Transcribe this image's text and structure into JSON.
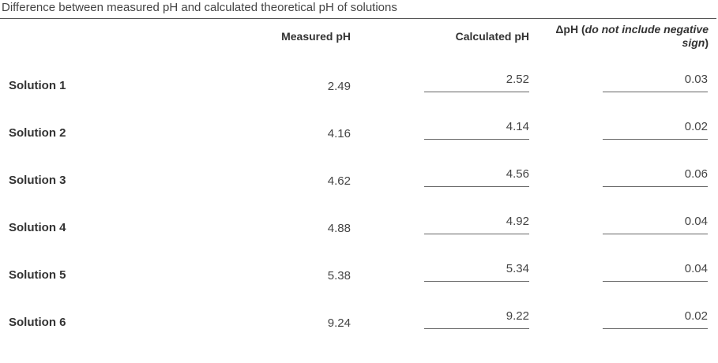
{
  "caption": "Difference between measured pH and calculated theoretical pH of solutions",
  "headers": {
    "measured": "Measured pH",
    "calculated": "Calculated pH",
    "delta_prefix": "ΔpH (",
    "delta_italic": "do not include negative sign",
    "delta_suffix": ")"
  },
  "rows": [
    {
      "label": "Solution 1",
      "measured": "2.49",
      "calculated": "2.52",
      "delta": "0.03"
    },
    {
      "label": "Solution 2",
      "measured": "4.16",
      "calculated": "4.14",
      "delta": "0.02"
    },
    {
      "label": "Solution 3",
      "measured": "4.62",
      "calculated": "4.56",
      "delta": "0.06"
    },
    {
      "label": "Solution 4",
      "measured": "4.88",
      "calculated": "4.92",
      "delta": "0.04"
    },
    {
      "label": "Solution 5",
      "measured": "5.38",
      "calculated": "5.34",
      "delta": "0.04"
    },
    {
      "label": "Solution 6",
      "measured": "9.24",
      "calculated": "9.22",
      "delta": "0.02"
    }
  ]
}
